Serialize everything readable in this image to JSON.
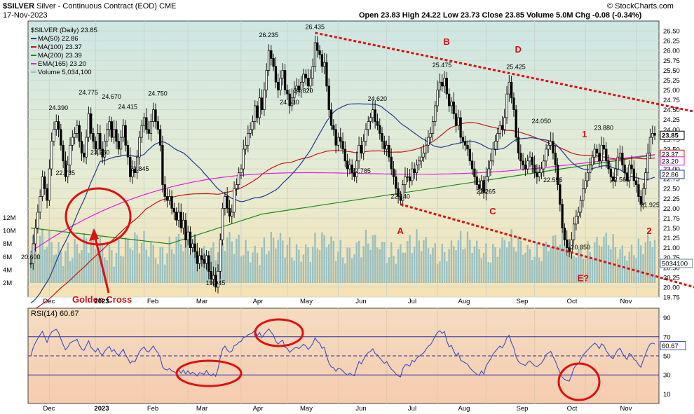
{
  "header": {
    "symbol": "$SILVER",
    "name": "Silver - Continuous Contract (EOD)",
    "exchange": "CME",
    "date": "17-Nov-2023",
    "ohlc": "Open 23.83  High 24.22  Low 23.73  Close 23.85  Volume 5.0M  Chg -0.08 (-0.34%)",
    "credit": "© StockCharts.com"
  },
  "legend": [
    {
      "label": "$SILVER (Daily) 23.85",
      "color": "#000000"
    },
    {
      "label": "MA(50) 22.86",
      "color": "#1f3a93"
    },
    {
      "label": "MA(100) 23.37",
      "color": "#c81414"
    },
    {
      "label": "MA(200) 23.39",
      "color": "#1a8a1a"
    },
    {
      "label": "EMA(165) 23.20",
      "color": "#e020e0"
    },
    {
      "label": "Volume 5,034,100",
      "color": "#9bbfbf"
    }
  ],
  "chart_data": [
    {
      "type": "line",
      "title": "$SILVER (Daily) 23.85",
      "x_tick_labels": [
        "Dec",
        "2023",
        "Feb",
        "Mar",
        "Apr",
        "May",
        "Jun",
        "Jul",
        "Aug",
        "Sep",
        "Oct",
        "Nov"
      ],
      "ylim": [
        19.75,
        26.75
      ],
      "y_tick_labels": [
        "26.50",
        "26.25",
        "26.00",
        "25.75",
        "25.50",
        "25.25",
        "25.00",
        "24.75",
        "24.50",
        "24.25",
        "24.00",
        "23.75",
        "23.50",
        "23.25",
        "23.00",
        "22.75",
        "22.50",
        "22.25",
        "22.00",
        "21.75",
        "21.50",
        "21.25",
        "21.00",
        "20.75",
        "20.50",
        "20.25",
        "20.00",
        "19.75"
      ],
      "volume_tick_labels": [
        "12M",
        "10M",
        "8M",
        "6M",
        "4M",
        "2M"
      ],
      "last_value_tags": [
        {
          "label": "23.85",
          "value": 23.85,
          "color": "#000000"
        },
        {
          "label": "23.37",
          "value": 23.37,
          "color": "#c81414"
        },
        {
          "label": "23.20",
          "value": 23.2,
          "color": "#e020e0"
        },
        {
          "label": "22.86",
          "value": 22.86,
          "color": "#1f3a93"
        },
        {
          "label": "5034100",
          "value": 20.3,
          "color": "#5a8a8a"
        }
      ],
      "price_annotations": [
        {
          "label": "20.600",
          "x": 0,
          "y": 20.6
        },
        {
          "label": "24.390",
          "x": 12,
          "y": 24.39
        },
        {
          "label": "22.735",
          "x": 15,
          "y": 22.735
        },
        {
          "label": "24.775",
          "x": 25,
          "y": 24.775
        },
        {
          "label": "23.260",
          "x": 30,
          "y": 23.26
        },
        {
          "label": "24.670",
          "x": 35,
          "y": 24.67
        },
        {
          "label": "24.415",
          "x": 42,
          "y": 24.415
        },
        {
          "label": "22.845",
          "x": 47,
          "y": 22.845
        },
        {
          "label": "24.750",
          "x": 55,
          "y": 24.75
        },
        {
          "label": "19.945",
          "x": 80,
          "y": 19.945
        },
        {
          "label": "26.235",
          "x": 103,
          "y": 26.235
        },
        {
          "label": "24.530",
          "x": 112,
          "y": 24.53
        },
        {
          "label": "24.820",
          "x": 118,
          "y": 24.82
        },
        {
          "label": "26.435",
          "x": 123,
          "y": 26.435
        },
        {
          "label": "22.785",
          "x": 143,
          "y": 22.785
        },
        {
          "label": "24.620",
          "x": 150,
          "y": 24.62
        },
        {
          "label": "22.140",
          "x": 160,
          "y": 22.14
        },
        {
          "label": "25.475",
          "x": 178,
          "y": 25.475
        },
        {
          "label": "22.265",
          "x": 197,
          "y": 22.265
        },
        {
          "label": "25.425",
          "x": 210,
          "y": 25.425
        },
        {
          "label": "24.050",
          "x": 221,
          "y": 24.05
        },
        {
          "label": "22.555",
          "x": 226,
          "y": 22.555
        },
        {
          "label": "20.850",
          "x": 238,
          "y": 20.85
        },
        {
          "label": "23.880",
          "x": 248,
          "y": 23.88
        },
        {
          "label": "22.565",
          "x": 255,
          "y": 22.565
        },
        {
          "label": "21.925",
          "x": 268,
          "y": 21.925
        }
      ],
      "wave_labels": [
        {
          "label": "A",
          "x": 160,
          "y": 21.35
        },
        {
          "label": "B",
          "x": 180,
          "y": 26.15
        },
        {
          "label": "C",
          "x": 200,
          "y": 21.85
        },
        {
          "label": "D",
          "x": 211,
          "y": 25.95
        },
        {
          "label": "1",
          "x": 240,
          "y": 23.8
        },
        {
          "label": "E?",
          "x": 238,
          "y": 20.15
        },
        {
          "label": "2",
          "x": 268,
          "y": 21.35
        }
      ],
      "callout": "Golden Cross",
      "trendlines": [
        {
          "name": "upper",
          "points": [
            [
              123,
              26.45
            ],
            [
              275,
              24.6
            ]
          ]
        },
        {
          "name": "lower",
          "points": [
            [
              160,
              22.1
            ],
            [
              275,
              20.2
            ]
          ]
        }
      ],
      "series": [
        {
          "name": "$SILVER (Daily) 23.85",
          "values": [
            20.6,
            21.1,
            21.5,
            21.9,
            22.3,
            22.8,
            22.5,
            22.2,
            23.0,
            23.7,
            24.0,
            24.2,
            24.0,
            23.6,
            23.2,
            22.8,
            23.1,
            23.6,
            23.8,
            23.9,
            24.1,
            23.7,
            23.4,
            23.3,
            23.8,
            24.4,
            23.9,
            23.7,
            23.5,
            23.9,
            23.5,
            23.3,
            23.7,
            24.0,
            24.2,
            23.8,
            24.0,
            23.7,
            23.5,
            23.8,
            24.1,
            23.6,
            23.3,
            22.8,
            23.0,
            22.9,
            23.3,
            23.8,
            24.1,
            24.3,
            24.0,
            23.9,
            24.2,
            24.5,
            24.2,
            24.0,
            23.6,
            22.6,
            22.3,
            22.2,
            22.3,
            22.0,
            21.9,
            21.7,
            21.9,
            21.5,
            21.7,
            21.2,
            21.4,
            21.0,
            21.1,
            20.9,
            20.6,
            20.8,
            20.7,
            20.6,
            20.8,
            20.4,
            20.2,
            20.3,
            20.0,
            20.4,
            21.2,
            22.0,
            22.3,
            22.0,
            21.8,
            21.9,
            22.5,
            22.6,
            22.9,
            23.0,
            23.5,
            23.6,
            23.9,
            24.0,
            24.2,
            24.6,
            24.3,
            24.8,
            24.5,
            25.0,
            25.5,
            26.0,
            25.8,
            25.6,
            25.2,
            25.0,
            25.3,
            25.5,
            25.0,
            24.9,
            24.6,
            24.8,
            25.0,
            25.1,
            25.0,
            25.2,
            25.4,
            25.3,
            25.1,
            25.3,
            25.6,
            26.2,
            26.0,
            25.9,
            25.6,
            25.7,
            25.1,
            24.5,
            24.1,
            24.0,
            23.6,
            23.8,
            23.7,
            23.5,
            23.2,
            23.0,
            23.1,
            22.9,
            22.8,
            23.2,
            23.6,
            23.4,
            23.7,
            24.0,
            24.2,
            24.3,
            24.5,
            24.2,
            24.1,
            23.9,
            23.7,
            23.5,
            23.6,
            23.3,
            23.0,
            22.8,
            22.5,
            22.3,
            22.2,
            22.6,
            22.8,
            22.8,
            22.7,
            23.0,
            22.9,
            23.1,
            23.2,
            23.3,
            23.4,
            23.6,
            23.8,
            23.9,
            24.2,
            24.6,
            25.0,
            25.2,
            25.1,
            25.3,
            24.9,
            24.6,
            24.7,
            24.4,
            24.1,
            24.3,
            23.8,
            23.7,
            23.6,
            23.5,
            23.2,
            23.0,
            22.8,
            22.6,
            22.5,
            22.7,
            22.4,
            22.8,
            23.0,
            23.2,
            23.5,
            23.7,
            23.9,
            24.1,
            24.0,
            24.3,
            24.9,
            25.2,
            24.8,
            24.5,
            23.8,
            23.4,
            23.2,
            23.1,
            23.0,
            23.2,
            23.3,
            23.1,
            22.9,
            22.8,
            22.9,
            23.0,
            23.2,
            23.5,
            23.6,
            23.7,
            23.4,
            23.1,
            22.6,
            22.1,
            21.5,
            21.2,
            21.0,
            20.9,
            21.2,
            21.6,
            21.8,
            21.9,
            22.2,
            22.5,
            22.7,
            22.9,
            23.1,
            23.3,
            23.5,
            23.4,
            23.2,
            23.6,
            23.5,
            23.2,
            23.0,
            22.8,
            22.7,
            23.0,
            23.3,
            23.4,
            23.1,
            22.9,
            22.7,
            23.1,
            23.0,
            22.7,
            22.6,
            22.3,
            22.1,
            22.5,
            22.9,
            23.4,
            23.8,
            23.9,
            23.85
          ]
        },
        {
          "name": "MA(50) 22.86"
        },
        {
          "name": "MA(100) 23.37"
        },
        {
          "name": "MA(200) 23.39"
        },
        {
          "name": "EMA(165) 23.20"
        },
        {
          "name": "Volume 5,034,100"
        }
      ]
    },
    {
      "type": "line",
      "title": "RSI(14) 60.67",
      "ylim": [
        0,
        100
      ],
      "y_tick_labels": [
        "90",
        "70",
        "50",
        "30",
        "10"
      ],
      "reference_lines": [
        70,
        50,
        30
      ],
      "last_value_tag": {
        "label": "60.67",
        "value": 60.67
      },
      "x_tick_labels": [
        "Dec",
        "2023",
        "Feb",
        "Mar",
        "Apr",
        "May",
        "Jun",
        "Jul",
        "Aug",
        "Sep",
        "Oct",
        "Nov"
      ],
      "series": [
        {
          "name": "RSI(14) 60.67"
        }
      ]
    }
  ]
}
